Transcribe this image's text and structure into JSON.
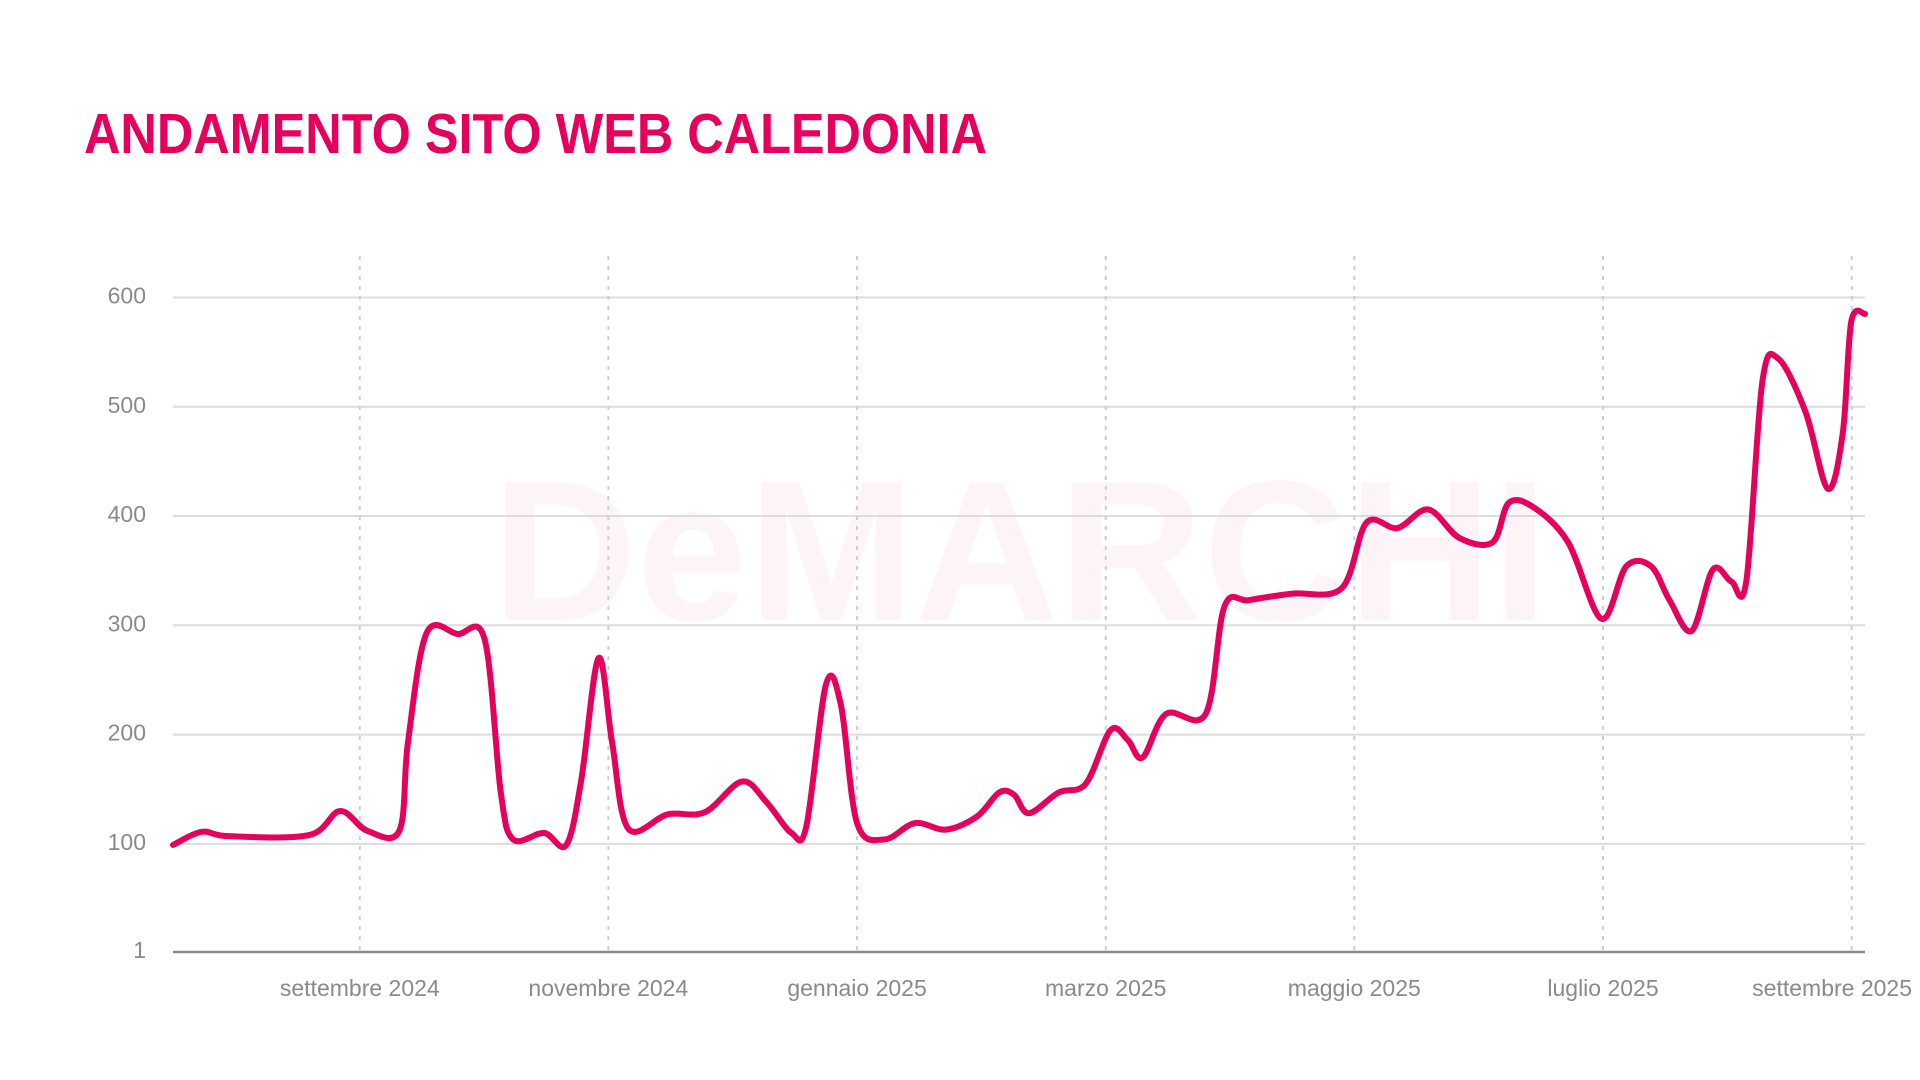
{
  "chart_data": {
    "type": "line",
    "title": "ANDAMENTO SITO WEB CALEDONIA",
    "watermark": "DeMARCHI",
    "color": "#e5005d",
    "x": [
      2024.5415,
      2024.5606,
      2024.5788,
      2024.6327,
      2024.6534,
      2024.6717,
      2024.6932,
      2024.699,
      2024.7115,
      2024.7322,
      2024.7504,
      2024.7612,
      2024.7695,
      2024.7902,
      2024.8051,
      2024.8151,
      2024.8267,
      2024.8358,
      2024.8466,
      2024.8731,
      2024.898,
      2024.9228,
      2024.9394,
      2024.956,
      2024.966,
      2024.9792,
      2024.9892,
      2025.0,
      2025.0182,
      2025.0389,
      2025.0596,
      2025.0804,
      2025.0953,
      2025.1052,
      2025.1152,
      2025.1351,
      2025.1533,
      2025.1699,
      2025.1815,
      2025.1914,
      2025.2072,
      2025.2337,
      2025.2462,
      2025.2627,
      2025.2917,
      2025.3249,
      2025.3415,
      2025.3622,
      2025.3829,
      2025.4037,
      2025.426,
      2025.4368,
      2025.4534,
      2025.4766,
      2025.499,
      2025.5156,
      2025.5322,
      2025.5446,
      2025.5595,
      2025.5736,
      2025.586,
      2025.596,
      2025.6068,
      2025.6175,
      2025.6358,
      2025.6507,
      2025.6607,
      2025.6664,
      2025.6756
    ],
    "values": [
      99,
      111,
      107,
      108,
      130,
      112,
      112,
      193,
      293,
      292,
      287,
      147,
      104,
      110,
      99,
      158,
      270,
      193,
      114,
      127,
      129,
      157,
      138,
      110,
      116,
      246,
      227,
      119,
      104,
      119,
      113,
      125,
      147,
      145,
      128,
      147,
      155,
      204,
      195,
      179,
      219,
      219,
      317,
      323,
      329,
      334,
      394,
      389,
      406,
      380,
      376,
      412,
      408,
      376,
      306,
      354,
      354,
      323,
      295,
      351,
      340,
      340,
      523,
      544,
      495,
      425,
      476,
      578,
      585
    ],
    "xlim": [
      2024.5415,
      2025.6756
    ],
    "xticks": [
      {
        "value": 2024.6667,
        "label": "settembre 2024"
      },
      {
        "value": 2024.8333,
        "label": "novembre 2024"
      },
      {
        "value": 2025.0,
        "label": "gennaio 2025"
      },
      {
        "value": 2025.1667,
        "label": "marzo 2025"
      },
      {
        "value": 2025.3333,
        "label": "maggio 2025"
      },
      {
        "value": 2025.5,
        "label": "luglio 2025"
      },
      {
        "value": 2025.6667,
        "label": "settembre 2025"
      }
    ],
    "ylim": [
      1,
      638
    ],
    "yticks": [
      1,
      100,
      200,
      300,
      400,
      500,
      600
    ],
    "grid": true
  }
}
